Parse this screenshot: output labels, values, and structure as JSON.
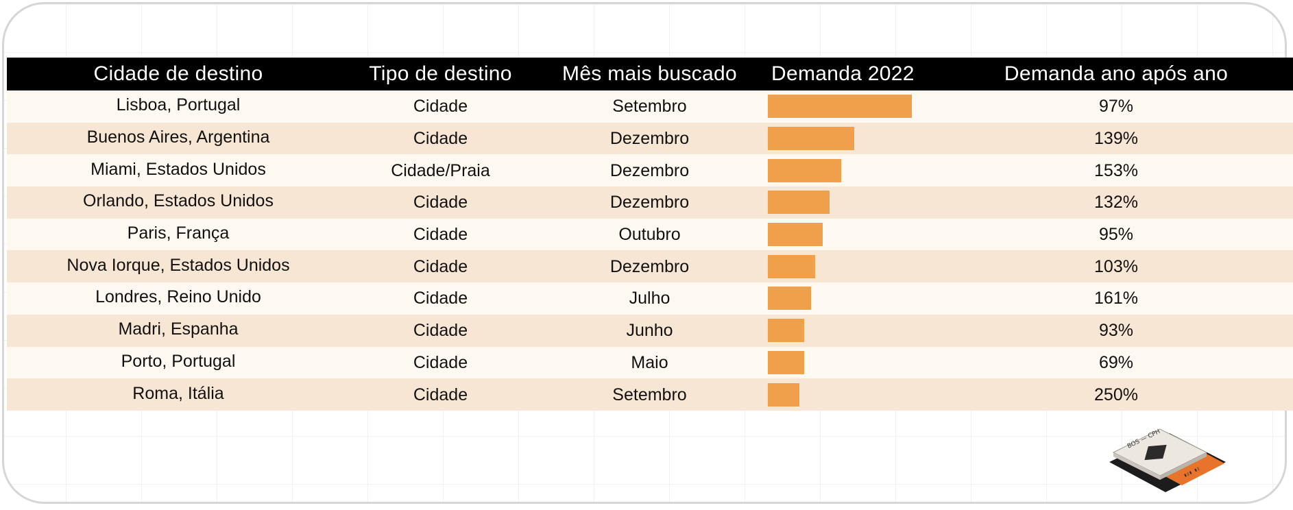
{
  "table": {
    "headers": [
      "Cidade de destino",
      "Tipo de destino",
      "Mês mais buscado",
      "Demanda 2022",
      "Demanda ano após ano"
    ],
    "rows": [
      {
        "city": "Lisboa, Portugal",
        "type": "Cidade",
        "month": "Setembro",
        "demand_2022": 1.0,
        "yoy": "97%"
      },
      {
        "city": "Buenos Aires, Argentina",
        "type": "Cidade",
        "month": "Dezembro",
        "demand_2022": 0.6,
        "yoy": "139%"
      },
      {
        "city": "Miami, Estados Unidos",
        "type": "Cidade/Praia",
        "month": "Dezembro",
        "demand_2022": 0.51,
        "yoy": "153%"
      },
      {
        "city": "Orlando, Estados Unidos",
        "type": "Cidade",
        "month": "Dezembro",
        "demand_2022": 0.43,
        "yoy": "132%"
      },
      {
        "city": "Paris, França",
        "type": "Cidade",
        "month": "Outubro",
        "demand_2022": 0.38,
        "yoy": "95%"
      },
      {
        "city": "Nova Iorque, Estados Unidos",
        "type": "Cidade",
        "month": "Dezembro",
        "demand_2022": 0.33,
        "yoy": "103%"
      },
      {
        "city": "Londres, Reino Unido",
        "type": "Cidade",
        "month": "Julho",
        "demand_2022": 0.3,
        "yoy": "161%"
      },
      {
        "city": "Madri, Espanha",
        "type": "Cidade",
        "month": "Junho",
        "demand_2022": 0.25,
        "yoy": "93%"
      },
      {
        "city": "Porto, Portugal",
        "type": "Cidade",
        "month": "Maio",
        "demand_2022": 0.25,
        "yoy": "69%"
      },
      {
        "city": "Roma, Itália",
        "type": "Cidade",
        "month": "Setembro",
        "demand_2022": 0.22,
        "yoy": "250%"
      }
    ]
  },
  "colors": {
    "header_bg": "#000000",
    "row_light": "#fdf8f0",
    "row_dark": "#f7e6d3",
    "bar": "#f0a04b",
    "ticket_accent": "#e8742c"
  },
  "illustration": {
    "icon": "boarding-pass-icon",
    "route": "BOS — CPH"
  }
}
